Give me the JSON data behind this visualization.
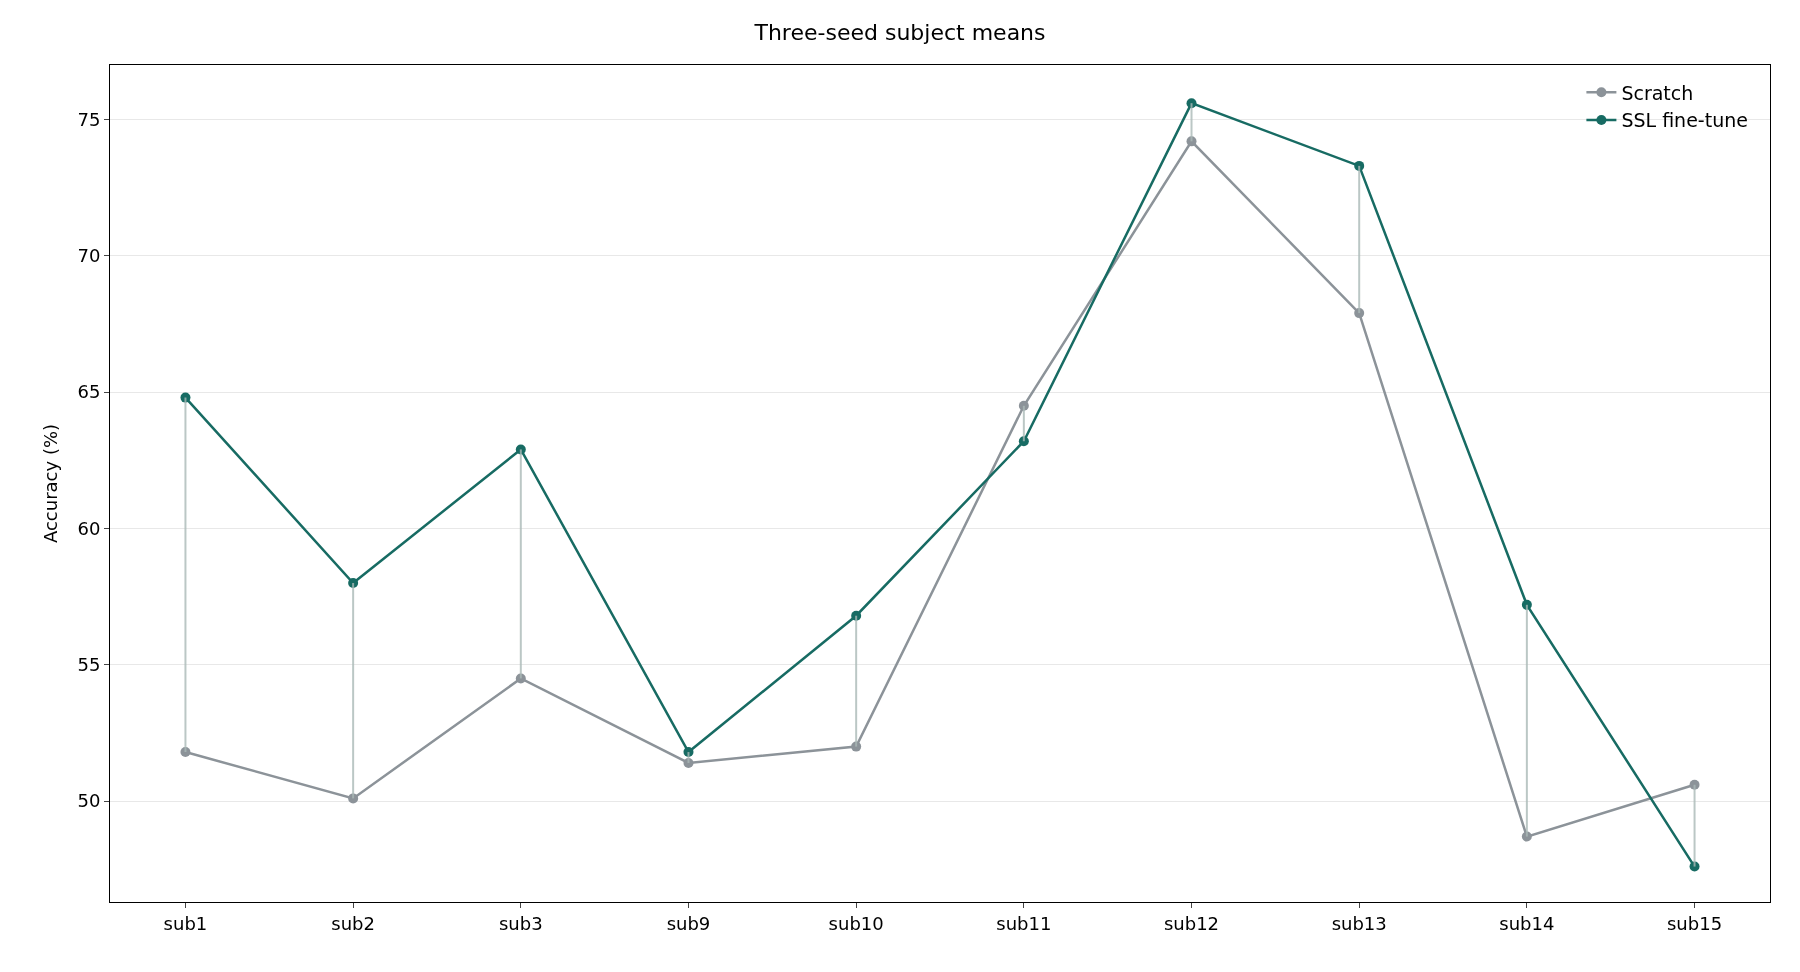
{
  "chart_data": {
    "type": "line",
    "title": "Three-seed subject means",
    "ylabel": "Accuracy (%)",
    "categories": [
      "sub1",
      "sub2",
      "sub3",
      "sub9",
      "sub10",
      "sub11",
      "sub12",
      "sub13",
      "sub14",
      "sub15"
    ],
    "series": [
      {
        "name": "Scratch",
        "color": "#8c9399",
        "values": [
          51.8,
          50.1,
          54.5,
          51.4,
          52.0,
          64.5,
          74.2,
          67.9,
          48.7,
          50.6
        ],
        "errors": [
          [
            51.8,
            64.8
          ],
          [
            50.1,
            58.0
          ],
          [
            54.5,
            62.9
          ],
          [
            51.4,
            51.8
          ],
          [
            52.0,
            56.8
          ],
          [
            63.2,
            64.5
          ],
          [
            74.2,
            75.6
          ],
          [
            67.9,
            73.3
          ],
          [
            48.7,
            57.2
          ],
          [
            47.6,
            50.6
          ]
        ]
      },
      {
        "name": "SSL fine-tune",
        "color": "#176b63",
        "values": [
          64.8,
          58.0,
          62.9,
          51.8,
          56.8,
          63.2,
          75.6,
          73.3,
          57.2,
          47.6
        ]
      }
    ],
    "ylim": [
      46.3,
      77
    ],
    "yticks": [
      50,
      55,
      60,
      65,
      70,
      75
    ],
    "grid": "y",
    "legend": "top right",
    "marker": "circle",
    "line_style": "solid"
  }
}
